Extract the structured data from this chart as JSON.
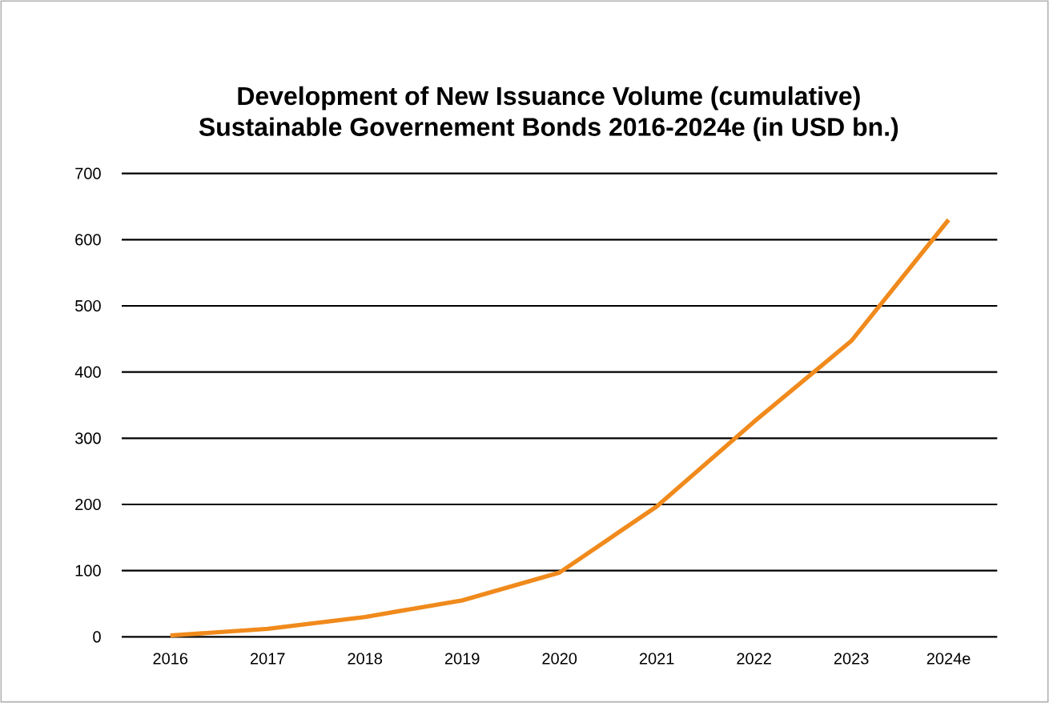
{
  "chart_data": {
    "type": "line",
    "title": "Development of New Issuance Volume (cumulative)",
    "subtitle": "Sustainable Governement Bonds 2016-2024e (in USD bn.)",
    "categories": [
      "2016",
      "2017",
      "2018",
      "2019",
      "2020",
      "2021",
      "2022",
      "2023",
      "2024e"
    ],
    "series": [
      {
        "color": "#f08a1c",
        "values": [
          2,
          12,
          30,
          55,
          97,
          197,
          325,
          447,
          630
        ]
      }
    ],
    "ylim": [
      0,
      700
    ],
    "yticks": [
      0,
      100,
      200,
      300,
      400,
      500,
      600,
      700
    ],
    "grid": "y",
    "marker": "none",
    "line_style": "solid"
  }
}
